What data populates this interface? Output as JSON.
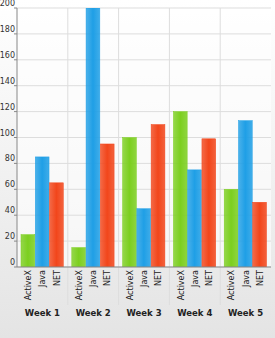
{
  "chart_data": {
    "type": "bar",
    "categories": [
      "Week 1",
      "Week 2",
      "Week 3",
      "Week 4",
      "Week 5"
    ],
    "series": [
      {
        "name": "ActiveX",
        "color": "#7ccf1f",
        "values": [
          25,
          15,
          100,
          120,
          60
        ]
      },
      {
        "name": "Java",
        "color": "#1f9fe6",
        "values": [
          85,
          200,
          45,
          75,
          113
        ]
      },
      {
        "name": "NET",
        "color": "#f2461b",
        "values": [
          65,
          95,
          110,
          99,
          50
        ]
      }
    ],
    "ylim": [
      0,
      200
    ],
    "yticks": [
      0,
      20,
      40,
      60,
      80,
      100,
      120,
      140,
      160,
      180,
      200
    ],
    "grid": true
  }
}
